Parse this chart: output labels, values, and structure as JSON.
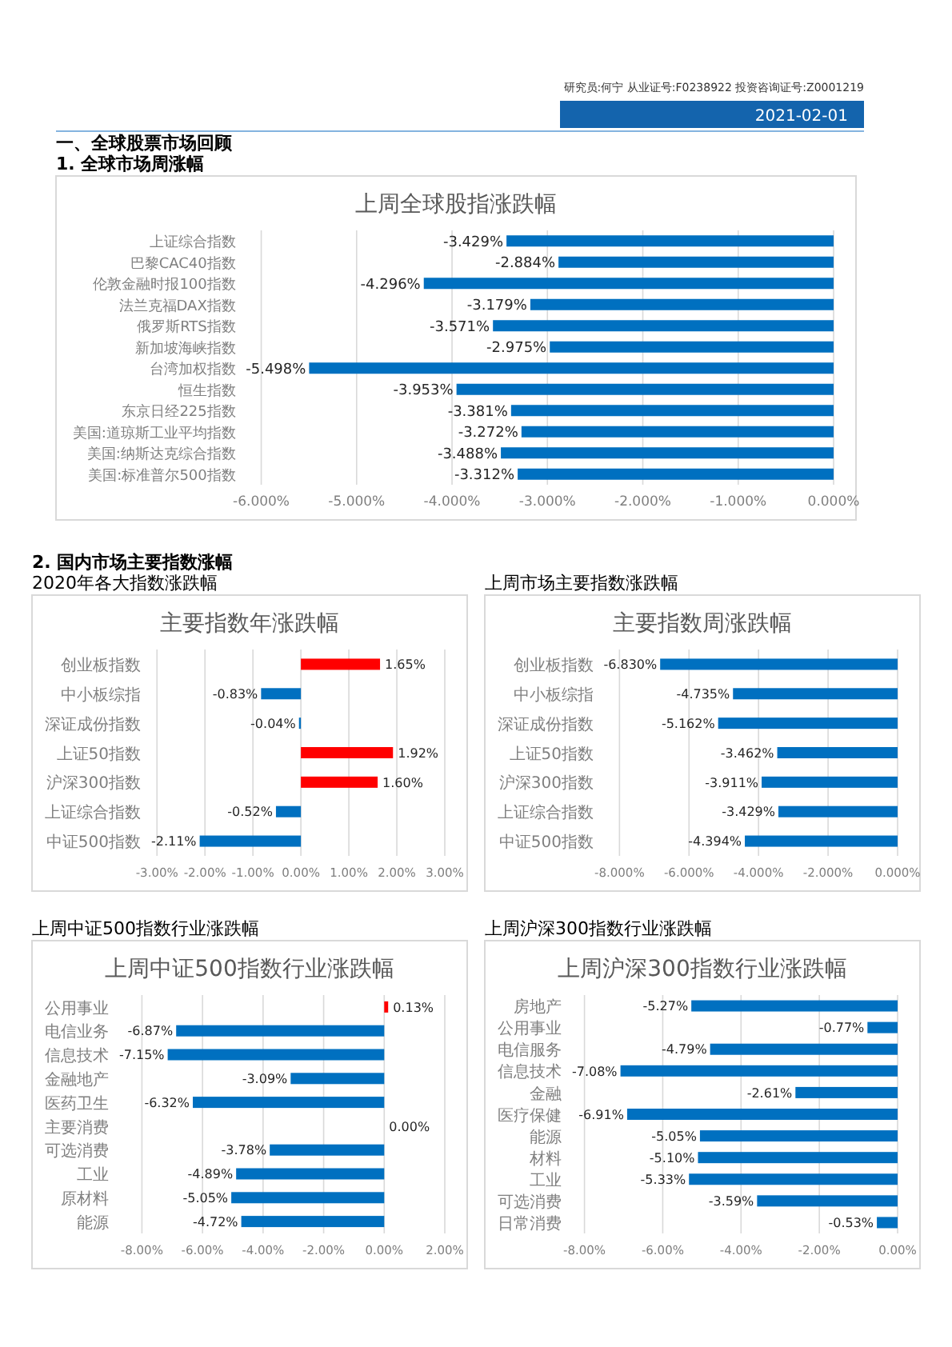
{
  "chart_data": [
    {
      "type": "bar",
      "orientation": "horizontal",
      "title": "上周全球股指涨跌幅",
      "subtitle": "1. 全球市场周涨幅",
      "annotations": [
        "研究员:何宁  从业证号:F0238922  投资咨询证号:Z0001219",
        "2021-02-01",
        "一、全球股票市场回顾"
      ],
      "categories": [
        "上证综合指数",
        "巴黎CAC40指数",
        "伦敦金融时报100指数",
        "法兰克福DAX指数",
        "俄罗斯RTS指数",
        "新加坡海峡指数",
        "台湾加权指数",
        "恒生指数",
        "东京日经225指数",
        "美国:道琼斯工业平均指数",
        "美国:纳斯达克综合指数",
        "美国:标准普尔500指数"
      ],
      "values": [
        -3.429,
        -2.884,
        -4.296,
        -3.179,
        -3.571,
        -2.975,
        -5.498,
        -3.953,
        -3.381,
        -3.272,
        -3.488,
        -3.312
      ],
      "value_labels": [
        "-3.429%",
        "-2.884%",
        "-4.296%",
        "-3.179%",
        "-3.571%",
        "-2.975%",
        "-5.498%",
        "-3.953%",
        "-3.381%",
        "-3.272%",
        "-3.488%",
        "-3.312%"
      ],
      "colors": [
        "#0070c0",
        "#0070c0",
        "#0070c0",
        "#0070c0",
        "#0070c0",
        "#0070c0",
        "#0070c0",
        "#0070c0",
        "#0070c0",
        "#0070c0",
        "#0070c0",
        "#0070c0"
      ],
      "xlim": [
        -6,
        0
      ],
      "xticks": [
        {
          "value": -6,
          "label": "-6.000%"
        },
        {
          "value": -5,
          "label": "-5.000%"
        },
        {
          "value": -4,
          "label": "-4.000%"
        },
        {
          "value": -3,
          "label": "-3.000%"
        },
        {
          "value": -2,
          "label": "-2.000%"
        },
        {
          "value": -1,
          "label": "-1.000%"
        },
        {
          "value": 0,
          "label": "0.000%"
        }
      ],
      "grid": "x"
    },
    {
      "type": "bar",
      "orientation": "horizontal",
      "title": "主要指数年涨跌幅",
      "subtitle": "2020年各大指数涨跌幅",
      "annotations": [
        "2. 国内市场主要指数涨幅"
      ],
      "categories": [
        "创业板指数",
        "中小板综指",
        "深证成份指数",
        "上证50指数",
        "沪深300指数",
        "上证综合指数",
        "中证500指数"
      ],
      "values": [
        1.65,
        -0.83,
        -0.04,
        1.92,
        1.6,
        -0.52,
        -2.11
      ],
      "value_labels": [
        "1.65%",
        "-0.83%",
        "-0.04%",
        "1.92%",
        "1.60%",
        "-0.52%",
        "-2.11%"
      ],
      "colors": [
        "#ff0000",
        "#0070c0",
        "#0070c0",
        "#ff0000",
        "#ff0000",
        "#0070c0",
        "#0070c0"
      ],
      "xlim": [
        -3,
        3
      ],
      "xticks": [
        {
          "value": -3,
          "label": "-3.00%"
        },
        {
          "value": -2,
          "label": "-2.00%"
        },
        {
          "value": -1,
          "label": "-1.00%"
        },
        {
          "value": 0,
          "label": "0.00%"
        },
        {
          "value": 1,
          "label": "1.00%"
        },
        {
          "value": 2,
          "label": "2.00%"
        },
        {
          "value": 3,
          "label": "3.00%"
        }
      ],
      "grid": "x"
    },
    {
      "type": "bar",
      "orientation": "horizontal",
      "title": "主要指数周涨跌幅",
      "subtitle": "上周市场主要指数涨跌幅",
      "categories": [
        "创业板指数",
        "中小板综指",
        "深证成份指数",
        "上证50指数",
        "沪深300指数",
        "上证综合指数",
        "中证500指数"
      ],
      "values": [
        -6.83,
        -4.735,
        -5.162,
        -3.462,
        -3.911,
        -3.429,
        -4.394
      ],
      "value_labels": [
        "-6.830%",
        "-4.735%",
        "-5.162%",
        "-3.462%",
        "-3.911%",
        "-3.429%",
        "-4.394%"
      ],
      "colors": [
        "#0070c0",
        "#0070c0",
        "#0070c0",
        "#0070c0",
        "#0070c0",
        "#0070c0",
        "#0070c0"
      ],
      "xlim": [
        -8,
        0
      ],
      "xticks": [
        {
          "value": -8,
          "label": "-8.000%"
        },
        {
          "value": -6,
          "label": "-6.000%"
        },
        {
          "value": -4,
          "label": "-4.000%"
        },
        {
          "value": -2,
          "label": "-2.000%"
        },
        {
          "value": 0,
          "label": "0.000%"
        }
      ],
      "grid": "x"
    },
    {
      "type": "bar",
      "orientation": "horizontal",
      "title": "上周中证500指数行业涨跌幅",
      "subtitle": "上周中证500指数行业涨跌幅",
      "categories": [
        "公用事业",
        "电信业务",
        "信息技术",
        "金融地产",
        "医药卫生",
        "主要消费",
        "可选消费",
        "工业",
        "原材料",
        "能源"
      ],
      "values": [
        0.13,
        -6.87,
        -7.15,
        -3.09,
        -6.32,
        0,
        -3.78,
        -4.89,
        -5.05,
        -4.72
      ],
      "value_labels": [
        "0.13%",
        "-6.87%",
        "-7.15%",
        "-3.09%",
        "-6.32%",
        "0.00%",
        "-3.78%",
        "-4.89%",
        "-5.05%",
        "-4.72%"
      ],
      "colors": [
        "#ff0000",
        "#0070c0",
        "#0070c0",
        "#0070c0",
        "#0070c0",
        "#0070c0",
        "#0070c0",
        "#0070c0",
        "#0070c0",
        "#0070c0"
      ],
      "xlim": [
        -8,
        2
      ],
      "xticks": [
        {
          "value": -8,
          "label": "-8.00%"
        },
        {
          "value": -6,
          "label": "-6.00%"
        },
        {
          "value": -4,
          "label": "-4.00%"
        },
        {
          "value": -2,
          "label": "-2.00%"
        },
        {
          "value": 0,
          "label": "0.00%"
        },
        {
          "value": 2,
          "label": "2.00%"
        }
      ],
      "grid": "x"
    },
    {
      "type": "bar",
      "orientation": "horizontal",
      "title": "上周沪深300指数行业涨跌幅",
      "subtitle": "上周沪深300指数行业涨跌幅",
      "categories": [
        "房地产",
        "公用事业",
        "电信服务",
        "信息技术",
        "金融",
        "医疗保健",
        "能源",
        "材料",
        "工业",
        "可选消费",
        "日常消费"
      ],
      "values": [
        -5.27,
        -0.77,
        -4.79,
        -7.08,
        -2.61,
        -6.91,
        -5.05,
        -5.1,
        -5.33,
        -3.59,
        -0.53
      ],
      "value_labels": [
        "-5.27%",
        "-0.77%",
        "-4.79%",
        "-7.08%",
        "-2.61%",
        "-6.91%",
        "-5.05%",
        "-5.10%",
        "-5.33%",
        "-3.59%",
        "-0.53%"
      ],
      "colors": [
        "#0070c0",
        "#0070c0",
        "#0070c0",
        "#0070c0",
        "#0070c0",
        "#0070c0",
        "#0070c0",
        "#0070c0",
        "#0070c0",
        "#0070c0",
        "#0070c0"
      ],
      "xlim": [
        -8,
        0
      ],
      "xticks": [
        {
          "value": -8,
          "label": "-8.00%"
        },
        {
          "value": -6,
          "label": "-6.00%"
        },
        {
          "value": -4,
          "label": "-4.00%"
        },
        {
          "value": -2,
          "label": "-2.00%"
        },
        {
          "value": 0,
          "label": "0.00%"
        }
      ],
      "grid": "x"
    }
  ]
}
